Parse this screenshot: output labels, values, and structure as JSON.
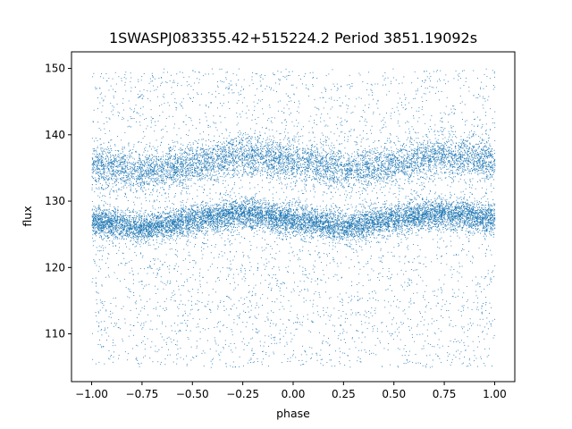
{
  "chart_data": {
    "type": "scatter",
    "title": "1SWASPJ083355.42+515224.2 Period 3851.19092s",
    "xlabel": "phase",
    "ylabel": "flux",
    "xlim": [
      -1.1,
      1.1
    ],
    "ylim": [
      102.8,
      152.5
    ],
    "xticks": [
      -1.0,
      -0.75,
      -0.5,
      -0.25,
      0.0,
      0.25,
      0.5,
      0.75,
      1.0
    ],
    "xtick_labels": [
      "−1.00",
      "−0.75",
      "−0.50",
      "−0.25",
      "0.00",
      "0.25",
      "0.50",
      "0.75",
      "1.00"
    ],
    "yticks": [
      110,
      120,
      130,
      140,
      150
    ],
    "ytick_labels": [
      "110",
      "120",
      "130",
      "140",
      "150"
    ],
    "grid": false,
    "marker_color": "#1f77b4",
    "series": [
      {
        "description_points": "phase-folded light curve, dense band 1",
        "x": [
          -1.0,
          -0.75,
          -0.5,
          -0.25,
          0.0,
          0.25,
          0.5,
          0.75,
          1.0
        ],
        "y": [
          127.0,
          126.0,
          127.2,
          128.2,
          127.2,
          126.2,
          127.4,
          128.3,
          127.3
        ]
      },
      {
        "description_points": "phase-folded light curve, dense band 2",
        "x": [
          -1.0,
          -0.75,
          -0.5,
          -0.25,
          0.0,
          0.25,
          0.5,
          0.75,
          1.0
        ],
        "y": [
          135.5,
          134.5,
          135.5,
          137.0,
          136.0,
          134.8,
          135.5,
          137.0,
          136.0
        ]
      }
    ],
    "scatter_range": {
      "x": [
        -1.0,
        1.0
      ],
      "y": [
        105.0,
        150.0
      ]
    }
  }
}
